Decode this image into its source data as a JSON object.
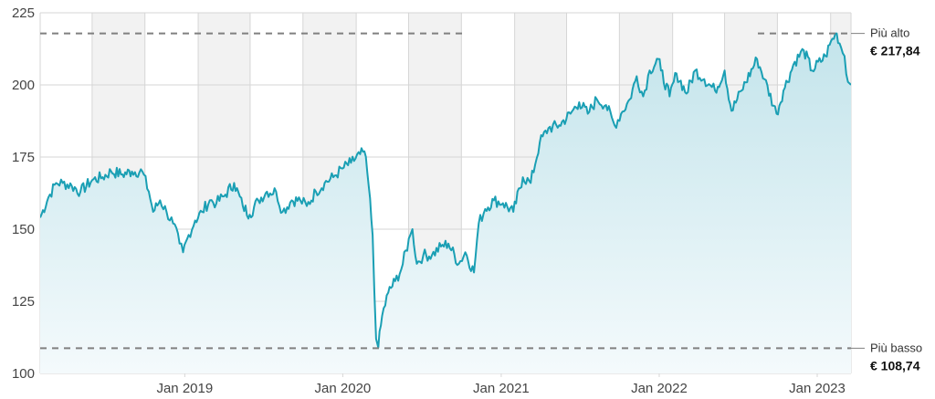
{
  "chart_data": {
    "type": "area",
    "title": "",
    "xlabel": "",
    "ylabel": "",
    "ylim": [
      100,
      225
    ],
    "yticks": [
      100,
      125,
      150,
      175,
      200,
      225
    ],
    "xlim": [
      "2018-02-01",
      "2023-03-20"
    ],
    "xticks": [
      {
        "label": "Jan 2019",
        "date": "2019-01-01"
      },
      {
        "label": "Jan 2020",
        "date": "2020-01-01"
      },
      {
        "label": "Jan 2021",
        "date": "2021-01-01"
      },
      {
        "label": "Jan 2022",
        "date": "2022-01-01"
      },
      {
        "label": "Jan 2023",
        "date": "2023-01-01"
      }
    ],
    "grid": true,
    "series": [
      {
        "points": [
          [
            "2018-02-01",
            154
          ],
          [
            "2018-02-20",
            161
          ],
          [
            "2018-03-10",
            166
          ],
          [
            "2018-03-25",
            166
          ],
          [
            "2018-04-15",
            165
          ],
          [
            "2018-05-05",
            163
          ],
          [
            "2018-06-01",
            167
          ],
          [
            "2018-06-25",
            168
          ],
          [
            "2018-07-15",
            170
          ],
          [
            "2018-08-10",
            169
          ],
          [
            "2018-09-01",
            170
          ],
          [
            "2018-09-25",
            170
          ],
          [
            "2018-10-10",
            163
          ],
          [
            "2018-10-20",
            156
          ],
          [
            "2018-11-05",
            160
          ],
          [
            "2018-11-20",
            156
          ],
          [
            "2018-12-05",
            152
          ],
          [
            "2018-12-20",
            145
          ],
          [
            "2018-12-28",
            142
          ],
          [
            "2019-01-10",
            148
          ],
          [
            "2019-01-25",
            153
          ],
          [
            "2019-02-10",
            156
          ],
          [
            "2019-02-28",
            160
          ],
          [
            "2019-03-15",
            159
          ],
          [
            "2019-04-05",
            162
          ],
          [
            "2019-04-25",
            166
          ],
          [
            "2019-05-15",
            158
          ],
          [
            "2019-05-31",
            155
          ],
          [
            "2019-06-20",
            160
          ],
          [
            "2019-07-10",
            163
          ],
          [
            "2019-07-31",
            163
          ],
          [
            "2019-08-15",
            156
          ],
          [
            "2019-09-05",
            160
          ],
          [
            "2019-09-25",
            160
          ],
          [
            "2019-10-10",
            158
          ],
          [
            "2019-10-31",
            163
          ],
          [
            "2019-11-20",
            166
          ],
          [
            "2019-12-10",
            168
          ],
          [
            "2019-12-31",
            171
          ],
          [
            "2020-01-20",
            173
          ],
          [
            "2020-02-10",
            176
          ],
          [
            "2020-02-20",
            177
          ],
          [
            "2020-03-01",
            165
          ],
          [
            "2020-03-10",
            148
          ],
          [
            "2020-03-18",
            112
          ],
          [
            "2020-03-23",
            109
          ],
          [
            "2020-04-01",
            120
          ],
          [
            "2020-04-15",
            128
          ],
          [
            "2020-05-01",
            132
          ],
          [
            "2020-05-15",
            136
          ],
          [
            "2020-06-05",
            148
          ],
          [
            "2020-06-10",
            150
          ],
          [
            "2020-06-20",
            138
          ],
          [
            "2020-07-05",
            141
          ],
          [
            "2020-07-25",
            141
          ],
          [
            "2020-08-15",
            144
          ],
          [
            "2020-09-01",
            145
          ],
          [
            "2020-09-25",
            138
          ],
          [
            "2020-10-10",
            142
          ],
          [
            "2020-10-30",
            135
          ],
          [
            "2020-11-10",
            152
          ],
          [
            "2020-11-25",
            157
          ],
          [
            "2020-12-15",
            160
          ],
          [
            "2021-01-05",
            159
          ],
          [
            "2021-01-29",
            156
          ],
          [
            "2021-02-20",
            168
          ],
          [
            "2021-03-10",
            166
          ],
          [
            "2021-03-31",
            180
          ],
          [
            "2021-04-20",
            185
          ],
          [
            "2021-05-15",
            186
          ],
          [
            "2021-06-10",
            190
          ],
          [
            "2021-06-30",
            194
          ],
          [
            "2021-07-20",
            190
          ],
          [
            "2021-08-10",
            195
          ],
          [
            "2021-08-31",
            193
          ],
          [
            "2021-09-20",
            186
          ],
          [
            "2021-10-05",
            190
          ],
          [
            "2021-10-25",
            195
          ],
          [
            "2021-11-10",
            203
          ],
          [
            "2021-11-25",
            196
          ],
          [
            "2021-12-10",
            205
          ],
          [
            "2021-12-30",
            209
          ],
          [
            "2022-01-05",
            205
          ],
          [
            "2022-01-25",
            196
          ],
          [
            "2022-02-10",
            204
          ],
          [
            "2022-03-05",
            197
          ],
          [
            "2022-03-25",
            205
          ],
          [
            "2022-04-15",
            202
          ],
          [
            "2022-05-10",
            198
          ],
          [
            "2022-06-01",
            205
          ],
          [
            "2022-06-17",
            191
          ],
          [
            "2022-07-10",
            198
          ],
          [
            "2022-08-15",
            209
          ],
          [
            "2022-09-01",
            202
          ],
          [
            "2022-09-29",
            190
          ],
          [
            "2022-10-15",
            198
          ],
          [
            "2022-11-10",
            208
          ],
          [
            "2022-12-01",
            212
          ],
          [
            "2022-12-20",
            205
          ],
          [
            "2023-01-20",
            210
          ],
          [
            "2023-02-05",
            216
          ],
          [
            "2023-02-15",
            217.84
          ],
          [
            "2023-02-25",
            213
          ],
          [
            "2023-03-05",
            210
          ],
          [
            "2023-03-13",
            201
          ],
          [
            "2023-03-20",
            200
          ]
        ]
      }
    ],
    "colors": {
      "line": "#1a9fb4",
      "fill_top": "#c3e4eb",
      "fill_bottom": "#f4fafc",
      "band_shade": "#f2f2f2",
      "grid": "#d6d6d6",
      "reference": "#808080"
    },
    "reference_lines": [
      {
        "label": "Più alto",
        "value_label": "€ 217,84",
        "value": 217.84
      },
      {
        "label": "Più basso",
        "value_label": "€ 108,74",
        "value": 108.74
      }
    ]
  }
}
